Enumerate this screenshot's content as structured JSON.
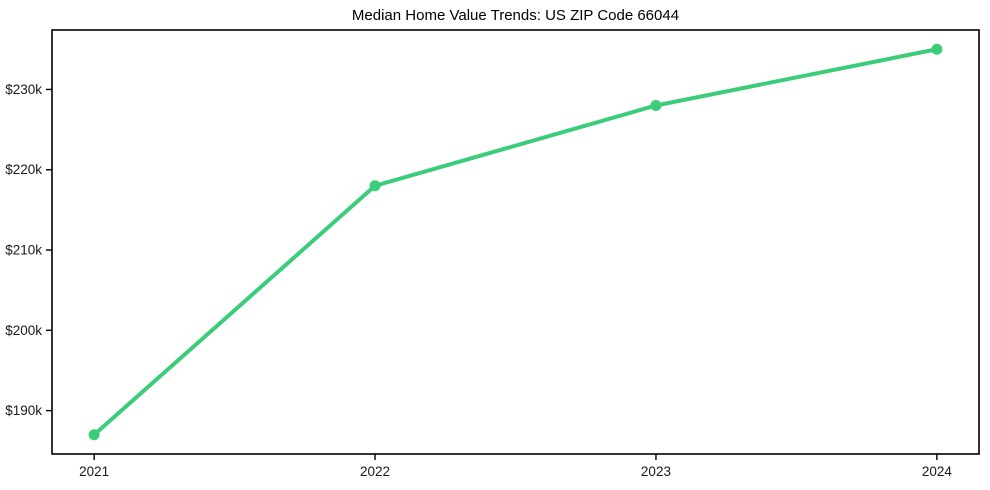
{
  "chart_data": {
    "type": "line",
    "title": "Median Home Value Trends: US ZIP Code 66044",
    "x": [
      2021,
      2022,
      2023,
      2024
    ],
    "x_tick_labels": [
      "2021",
      "2022",
      "2023",
      "2024"
    ],
    "series": [
      {
        "values": [
          187000,
          218000,
          228000,
          235000
        ],
        "color": "#3ccd7a"
      }
    ],
    "y_ticks": [
      {
        "value": 190000,
        "label": "$190k"
      },
      {
        "value": 200000,
        "label": "$200k"
      },
      {
        "value": 210000,
        "label": "$210k"
      },
      {
        "value": 220000,
        "label": "$220k"
      },
      {
        "value": 230000,
        "label": "$230k"
      }
    ],
    "xlabel": "",
    "ylabel": "",
    "xlim": [
      2020.85,
      2024.15
    ],
    "ylim": [
      184600,
      237400
    ],
    "grid": false,
    "legend": false,
    "axis_color": "#000000",
    "tick_label_color": "#1a1a1a",
    "background": "#ffffff"
  }
}
